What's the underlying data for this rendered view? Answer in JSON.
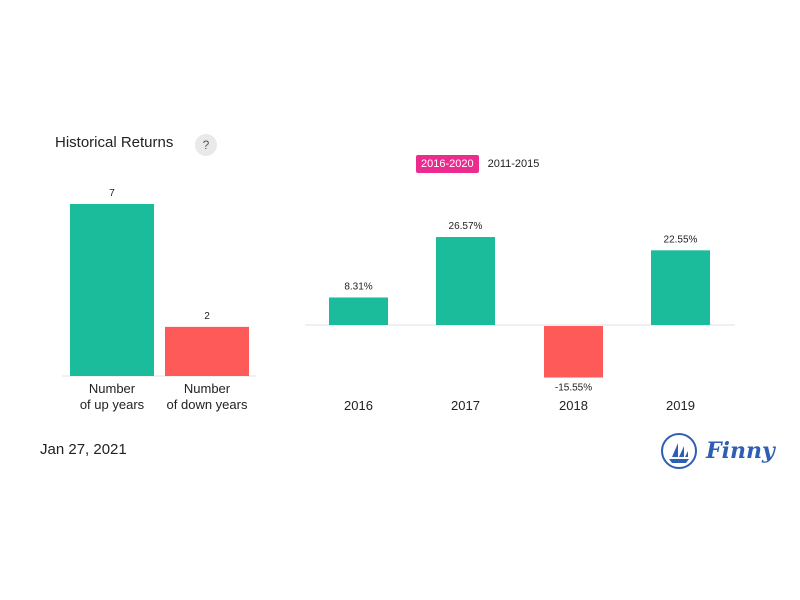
{
  "header": {
    "title": "Historical Returns",
    "help_label": "?"
  },
  "tabs": [
    {
      "label": "2016-2020",
      "active": true
    },
    {
      "label": "2011-2015",
      "active": false
    }
  ],
  "footer": {
    "date": "Jan 27, 2021",
    "brand": "Finny"
  },
  "colors": {
    "positive": "#1bbc9b",
    "negative": "#ff5a5a",
    "active_tab": "#ec2b8f",
    "brand": "#2f5fb5"
  },
  "chart_data": [
    {
      "type": "bar",
      "categories": [
        [
          "Number",
          "of up years"
        ],
        [
          "Number",
          "of down years"
        ]
      ],
      "values": [
        7,
        2
      ],
      "value_labels": [
        "7",
        "2"
      ],
      "colors": [
        "#1bbc9b",
        "#ff5a5a"
      ],
      "ylim": [
        0,
        7
      ]
    },
    {
      "type": "bar",
      "categories": [
        "2016",
        "2017",
        "2018",
        "2019"
      ],
      "values": [
        8.31,
        26.57,
        -15.55,
        22.55
      ],
      "value_labels": [
        "8.31%",
        "26.57%",
        "-15.55%",
        "22.55%"
      ],
      "ylim": [
        -15.55,
        26.57
      ]
    }
  ]
}
